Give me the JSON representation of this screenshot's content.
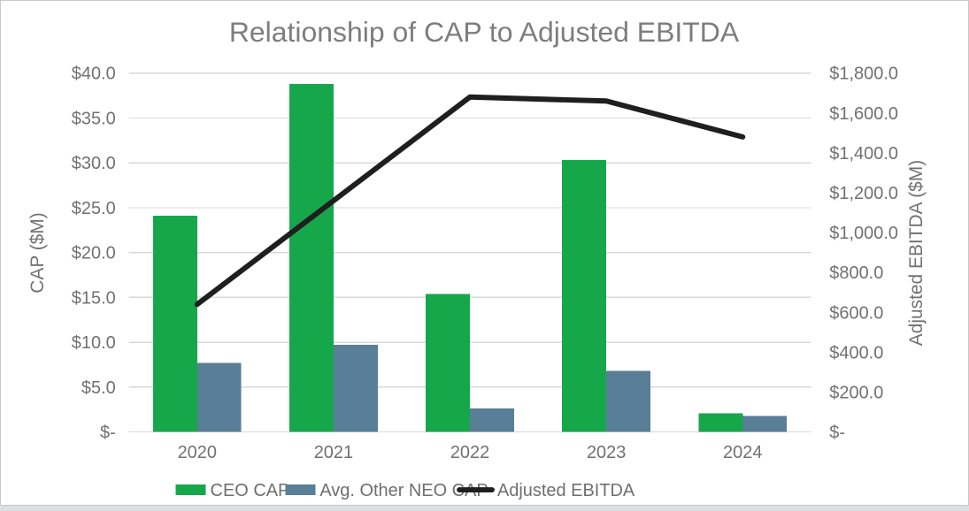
{
  "page": {
    "border_color": "#c5c9ca",
    "outer_background": "#dde0e2",
    "plot_background": "#ffffff"
  },
  "chart_data": {
    "type": "combo-bar-line",
    "title": "Relationship of CAP to Adjusted EBITDA",
    "categories": [
      "2020",
      "2021",
      "2022",
      "2023",
      "2024"
    ],
    "series": [
      {
        "name": "CEO CAP",
        "type": "bar",
        "axis": "left",
        "color": "#17a74b",
        "values": [
          24.1,
          38.8,
          15.4,
          30.3,
          2.1
        ]
      },
      {
        "name": "Avg. Other NEO CAP",
        "type": "bar",
        "axis": "left",
        "color": "#587e98",
        "values": [
          7.7,
          9.7,
          2.6,
          6.8,
          1.8
        ]
      },
      {
        "name": "Adjusted EBITDA",
        "type": "line",
        "axis": "right",
        "color": "#1f1f1f",
        "values": [
          640,
          1160,
          1680,
          1660,
          1480
        ]
      }
    ],
    "left_axis": {
      "title": "CAP ($M)",
      "min": 0,
      "max": 40,
      "step": 5,
      "tick_labels": [
        "$-",
        "$5.0",
        "$10.0",
        "$15.0",
        "$20.0",
        "$25.0",
        "$30.0",
        "$35.0",
        "$40.0"
      ]
    },
    "right_axis": {
      "title": "Adjusted EBITDA ($M)",
      "min": 0,
      "max": 1800,
      "step": 200,
      "tick_labels": [
        "$-",
        "$200.0",
        "$400.0",
        "$600.0",
        "$800.0",
        "$1,000.0",
        "$1,200.0",
        "$1,400.0",
        "$1,600.0",
        "$1,800.0"
      ]
    },
    "grid": true,
    "grid_color": "#d9d9d9",
    "legend_position": "bottom",
    "text_color": "#717171",
    "title_color": "#7d7d7d"
  }
}
